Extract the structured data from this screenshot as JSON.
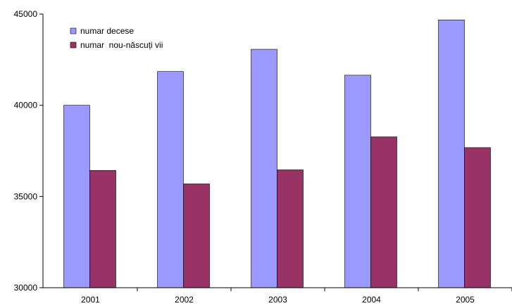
{
  "chart_data": {
    "type": "bar",
    "title": "",
    "xlabel": "",
    "ylabel": "",
    "categories": [
      "2001",
      "2002",
      "2003",
      "2004",
      "2005"
    ],
    "series": [
      {
        "name": "numar decese",
        "color": "#9999FF",
        "values": [
          40000,
          41850,
          43070,
          41650,
          44680
        ]
      },
      {
        "name": "numar  nou-născuți vii",
        "color": "#993366",
        "values": [
          36430,
          35690,
          36460,
          38270,
          37680
        ]
      }
    ],
    "ylim": [
      30000,
      45000
    ],
    "yticks": [
      30000,
      35000,
      40000,
      45000
    ],
    "grid": false,
    "legend": "top-left"
  }
}
